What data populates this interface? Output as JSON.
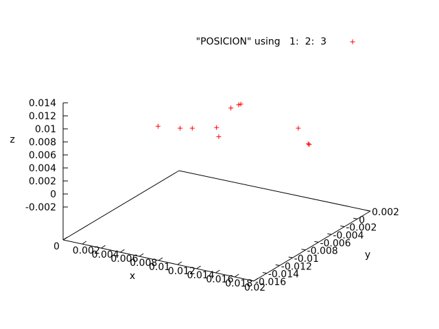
{
  "chart_data": {
    "type": "scatter",
    "projection": "3d",
    "legend": {
      "label": "\"POSICION\" using   1:  2:  3",
      "position": "top-right",
      "marker": "+",
      "color": "#ff0000"
    },
    "xlabel": "x",
    "ylabel": "y",
    "zlabel": "z",
    "x_ticks": [
      "0",
      "0.002",
      "0.004",
      "0.006",
      "0.008",
      "0.01",
      "0.012",
      "0.014",
      "0.016",
      "0.018",
      "0.02"
    ],
    "y_ticks": [
      "0.002",
      "0",
      "-0.002",
      "-0.004",
      "-0.006",
      "-0.008",
      "-0.01",
      "-0.012",
      "-0.014",
      "-0.016"
    ],
    "z_ticks": [
      "0.014",
      "0.012",
      "0.01",
      "0.008",
      "0.006",
      "0.004",
      "0.002",
      "0",
      "-0.002"
    ],
    "xlim": [
      0,
      0.02
    ],
    "ylim": [
      -0.016,
      0.002
    ],
    "zlim": [
      -0.004,
      0.014
    ],
    "grid": false,
    "series": [
      {
        "name": "\"POSICION\" using   1:  2:  3",
        "color": "#ff0000",
        "points": [
          {
            "x": 0.0058,
            "y": 0.002,
            "z": 0.0104
          },
          {
            "x": 0.0078,
            "y": 0.002,
            "z": 0.0101
          },
          {
            "x": 0.0089,
            "y": 0.002,
            "z": 0.0101
          },
          {
            "x": 0.0111,
            "y": 0.002,
            "z": 0.0102
          },
          {
            "x": 0.0113,
            "y": 0.002,
            "z": 0.0088
          },
          {
            "x": 0.0124,
            "y": 0.002,
            "z": 0.0132
          },
          {
            "x": 0.0131,
            "y": 0.002,
            "z": 0.0137
          },
          {
            "x": 0.0133,
            "y": 0.002,
            "z": 0.0138
          },
          {
            "x": 0.0185,
            "y": 0.002,
            "z": 0.0101
          },
          {
            "x": 0.0194,
            "y": 0.002,
            "z": 0.0077
          },
          {
            "x": 0.0195,
            "y": 0.002,
            "z": 0.0076
          }
        ]
      }
    ]
  }
}
